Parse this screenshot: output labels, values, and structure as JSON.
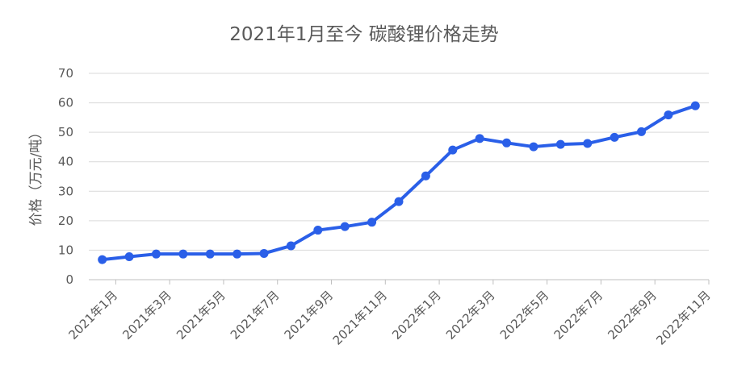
{
  "chart_data": {
    "type": "line",
    "title": "2021年1月至今 碳酸锂价格走势",
    "xlabel": "",
    "ylabel": "价格（万元/吨）",
    "ylim": [
      0,
      70
    ],
    "yticks": [
      0,
      10,
      20,
      30,
      40,
      50,
      60,
      70
    ],
    "grid": true,
    "x_tick_labels": [
      "2021年1月",
      "2021年3月",
      "2021年5月",
      "2021年7月",
      "2021年9月",
      "2021年11月",
      "2022年1月",
      "2022年3月",
      "2022年5月",
      "2022年7月",
      "2022年9月",
      "2022年11月"
    ],
    "series": [
      {
        "color": "#2a5fe8",
        "values": [
          6.8,
          7.8,
          8.7,
          8.7,
          8.7,
          8.7,
          8.9,
          11.5,
          16.8,
          18.0,
          19.5,
          26.5,
          35.2,
          44.0,
          47.9,
          46.4,
          45.1,
          45.9,
          46.2,
          48.3,
          50.2,
          55.9,
          59.0
        ]
      }
    ]
  }
}
